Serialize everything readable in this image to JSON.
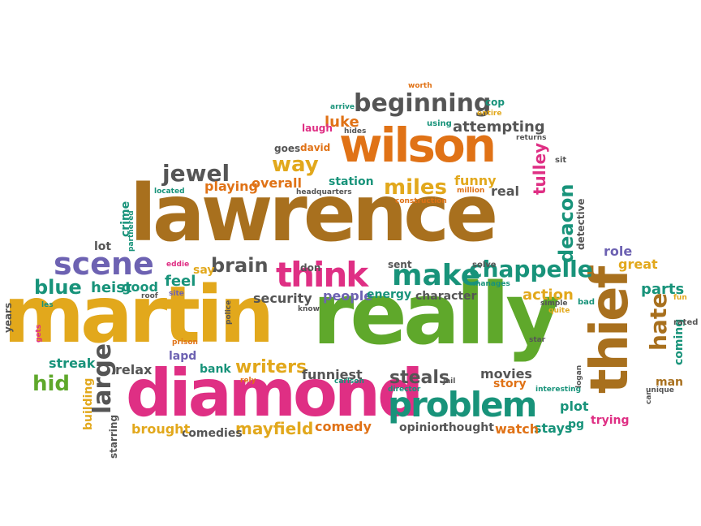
{
  "colors": {
    "brown": "#a8701e",
    "orange": "#e07216",
    "gold": "#e2a81c",
    "green": "#5fa82b",
    "magenta": "#df2f84",
    "purple": "#6d62b2",
    "teal": "#18937a",
    "gray": "#555555",
    "lightgray": "#8a8a8a"
  },
  "words": [
    {
      "text": "lawrence",
      "color": "brown"
    },
    {
      "text": "martin",
      "color": "gold"
    },
    {
      "text": "really",
      "color": "green"
    },
    {
      "text": "diamond",
      "color": "magenta"
    },
    {
      "text": "wilson",
      "color": "orange"
    },
    {
      "text": "thief",
      "color": "brown"
    },
    {
      "text": "problem",
      "color": "teal"
    },
    {
      "text": "think",
      "color": "magenta"
    },
    {
      "text": "make",
      "color": "teal"
    },
    {
      "text": "scene",
      "color": "purple"
    },
    {
      "text": "chappelle",
      "color": "teal"
    },
    {
      "text": "beginning",
      "color": "gray"
    },
    {
      "text": "jewel",
      "color": "gray"
    },
    {
      "text": "way",
      "color": "gold"
    },
    {
      "text": "miles",
      "color": "gold"
    },
    {
      "text": "blue",
      "color": "teal"
    },
    {
      "text": "large",
      "color": "gray"
    },
    {
      "text": "hid",
      "color": "green"
    },
    {
      "text": "hate",
      "color": "brown"
    },
    {
      "text": "deacon",
      "color": "teal"
    },
    {
      "text": "brain",
      "color": "gray"
    },
    {
      "text": "writers",
      "color": "gold"
    },
    {
      "text": "mayfield",
      "color": "gold"
    },
    {
      "text": "steals",
      "color": "gray"
    },
    {
      "text": "luke",
      "color": "orange"
    },
    {
      "text": "attempting",
      "color": "gray"
    },
    {
      "text": "funny",
      "color": "gold"
    },
    {
      "text": "tulley",
      "color": "magenta"
    },
    {
      "text": "overall",
      "color": "orange"
    },
    {
      "text": "playing",
      "color": "orange"
    },
    {
      "text": "station",
      "color": "teal"
    },
    {
      "text": "real",
      "color": "gray"
    },
    {
      "text": "feel",
      "color": "teal"
    },
    {
      "text": "heist",
      "color": "teal"
    },
    {
      "text": "good",
      "color": "teal"
    },
    {
      "text": "security",
      "color": "gray"
    },
    {
      "text": "people",
      "color": "purple"
    },
    {
      "text": "energy",
      "color": "teal"
    },
    {
      "text": "character",
      "color": "gray"
    },
    {
      "text": "action",
      "color": "gold"
    },
    {
      "text": "parts",
      "color": "teal"
    },
    {
      "text": "role",
      "color": "purple"
    },
    {
      "text": "great",
      "color": "gold"
    },
    {
      "text": "coming",
      "color": "teal"
    },
    {
      "text": "man",
      "color": "brown"
    },
    {
      "text": "trying",
      "color": "magenta"
    },
    {
      "text": "pg",
      "color": "teal"
    },
    {
      "text": "stays",
      "color": "teal"
    },
    {
      "text": "watch",
      "color": "orange"
    },
    {
      "text": "plot",
      "color": "teal"
    },
    {
      "text": "movies",
      "color": "gray"
    },
    {
      "text": "story",
      "color": "orange"
    },
    {
      "text": "thought",
      "color": "gray"
    },
    {
      "text": "opinion",
      "color": "gray"
    },
    {
      "text": "comedy",
      "color": "orange"
    },
    {
      "text": "comedies",
      "color": "gray"
    },
    {
      "text": "brought",
      "color": "gold"
    },
    {
      "text": "funniest",
      "color": "gray"
    },
    {
      "text": "bank",
      "color": "teal"
    },
    {
      "text": "relax",
      "color": "gray"
    },
    {
      "text": "streak",
      "color": "teal"
    },
    {
      "text": "lapd",
      "color": "purple"
    },
    {
      "text": "building",
      "color": "gold"
    },
    {
      "text": "starring",
      "color": "gray"
    },
    {
      "text": "crime",
      "color": "teal"
    },
    {
      "text": "lot",
      "color": "gray"
    },
    {
      "text": "say",
      "color": "gold"
    },
    {
      "text": "don",
      "color": "gray"
    },
    {
      "text": "sent",
      "color": "gray"
    },
    {
      "text": "solve",
      "color": "gray"
    },
    {
      "text": "goes",
      "color": "gray"
    },
    {
      "text": "david",
      "color": "orange"
    },
    {
      "text": "laugh",
      "color": "magenta"
    },
    {
      "text": "using",
      "color": "teal"
    },
    {
      "text": "cop",
      "color": "teal"
    },
    {
      "text": "years",
      "color": "gray"
    },
    {
      "text": "rated",
      "color": "gray"
    },
    {
      "text": "bad",
      "color": "teal"
    },
    {
      "text": "sit",
      "color": "gray"
    },
    {
      "text": "detective",
      "color": "gray"
    },
    {
      "text": "located",
      "color": "teal"
    },
    {
      "text": "headquarters",
      "color": "gray"
    },
    {
      "text": "construction",
      "color": "orange"
    },
    {
      "text": "million",
      "color": "orange"
    },
    {
      "text": "partnered",
      "color": "teal"
    },
    {
      "text": "eddie",
      "color": "magenta"
    },
    {
      "text": "site",
      "color": "purple"
    },
    {
      "text": "roof",
      "color": "gray"
    },
    {
      "text": "les",
      "color": "teal"
    },
    {
      "text": "know",
      "color": "gray"
    },
    {
      "text": "manages",
      "color": "teal"
    },
    {
      "text": "simple",
      "color": "gray"
    },
    {
      "text": "quite",
      "color": "gold"
    },
    {
      "text": "fun",
      "color": "gold"
    },
    {
      "text": "star",
      "color": "gray"
    },
    {
      "text": "carlson",
      "color": "teal"
    },
    {
      "text": "jail",
      "color": "gray"
    },
    {
      "text": "interesting",
      "color": "teal"
    },
    {
      "text": "logan",
      "color": "gray"
    },
    {
      "text": "unique",
      "color": "gray"
    },
    {
      "text": "car",
      "color": "gray"
    },
    {
      "text": "director",
      "color": "teal"
    },
    {
      "text": "police",
      "color": "gray"
    },
    {
      "text": "prison",
      "color": "orange"
    },
    {
      "text": "rely",
      "color": "orange"
    },
    {
      "text": "gets",
      "color": "magenta"
    },
    {
      "text": "worth",
      "color": "orange"
    },
    {
      "text": "arrive",
      "color": "teal"
    },
    {
      "text": "entire",
      "color": "gold"
    },
    {
      "text": "hides",
      "color": "gray"
    },
    {
      "text": "returns",
      "color": "gray"
    }
  ]
}
